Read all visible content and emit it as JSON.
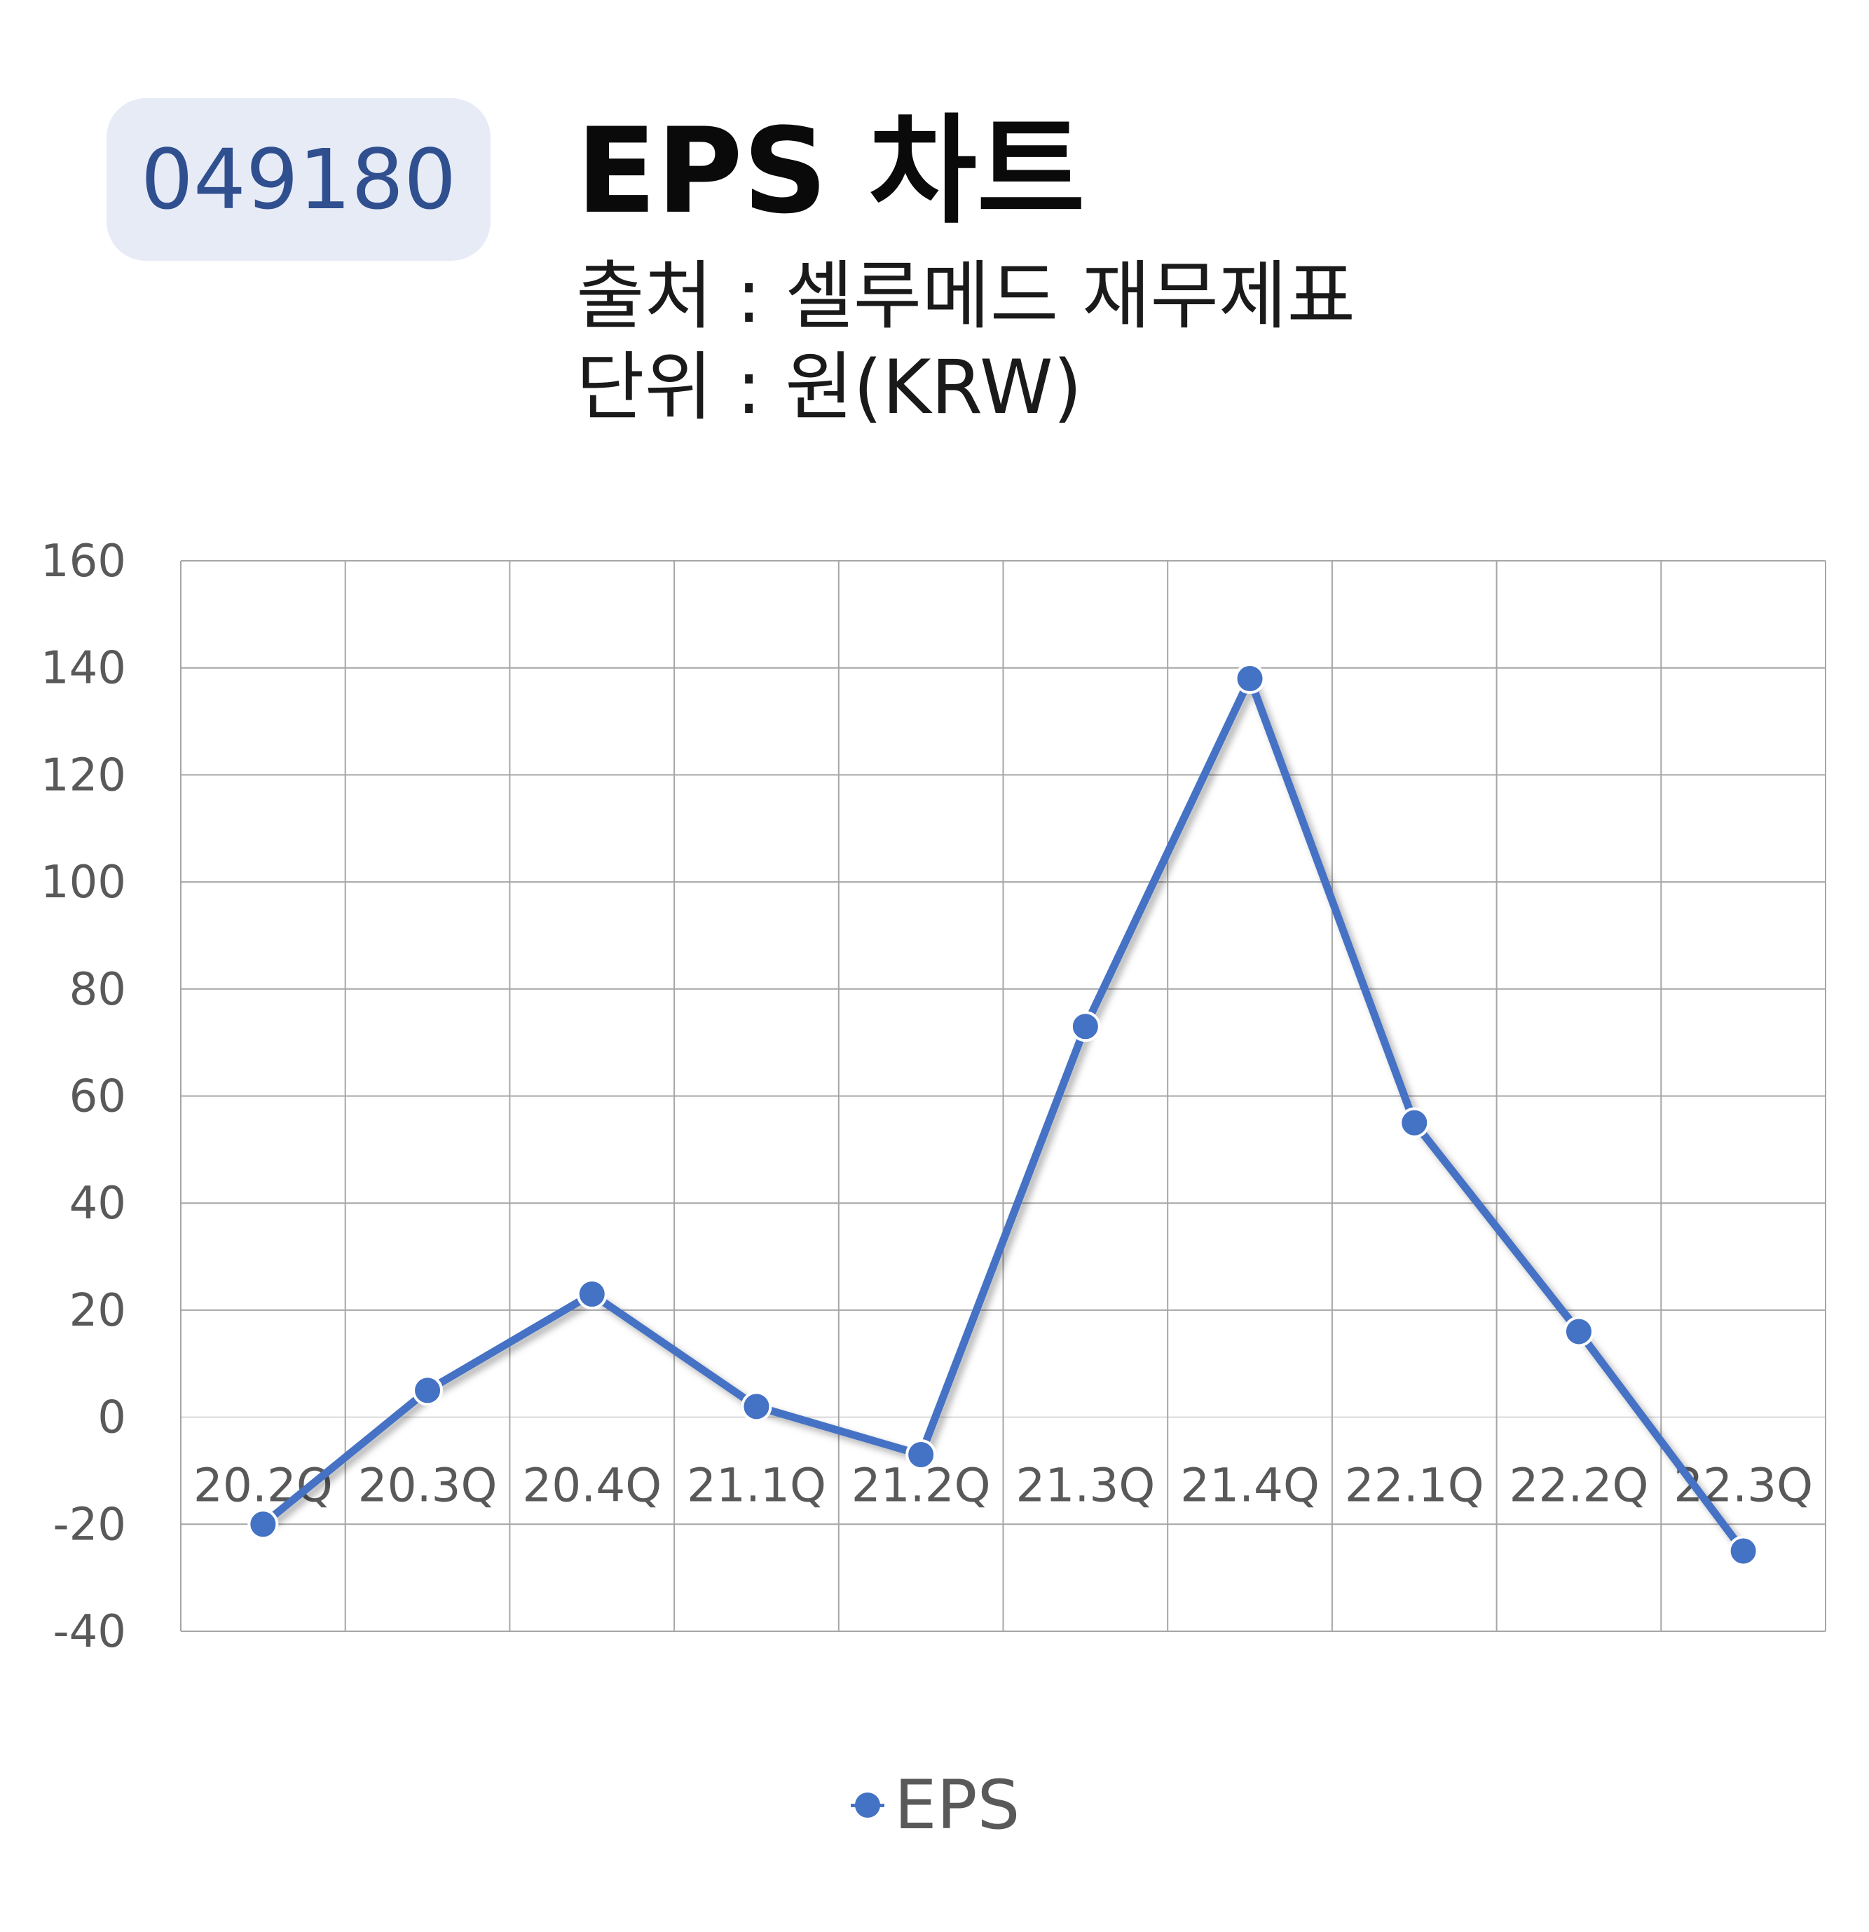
{
  "header": {
    "stock_code": "049180",
    "title": "EPS 차트",
    "source": "출처 : 셀루메드 재무제표",
    "unit": "단위 : 원(KRW)"
  },
  "legend": {
    "label": "EPS"
  },
  "colors": {
    "series": "#4472c4",
    "badge_bg": "#e6ebf6",
    "badge_text": "#2f4f8f",
    "grid": "#a6a6a6",
    "axis_text": "#595959"
  },
  "chart_data": {
    "type": "line",
    "title": "EPS 차트",
    "categories": [
      "20.2Q",
      "20.3Q",
      "20.4Q",
      "21.1Q",
      "21.2Q",
      "21.3Q",
      "21.4Q",
      "22.1Q",
      "22.2Q",
      "22.3Q"
    ],
    "series": [
      {
        "name": "EPS",
        "values": [
          -20,
          5,
          23,
          2,
          -7,
          73,
          138,
          55,
          16,
          -25
        ]
      }
    ],
    "y_ticks": [
      160,
      140,
      120,
      100,
      80,
      60,
      40,
      20,
      0,
      -20,
      -40
    ],
    "ylim": [
      -40,
      160
    ],
    "grid": true,
    "legend_position": "bottom",
    "markers": true
  }
}
